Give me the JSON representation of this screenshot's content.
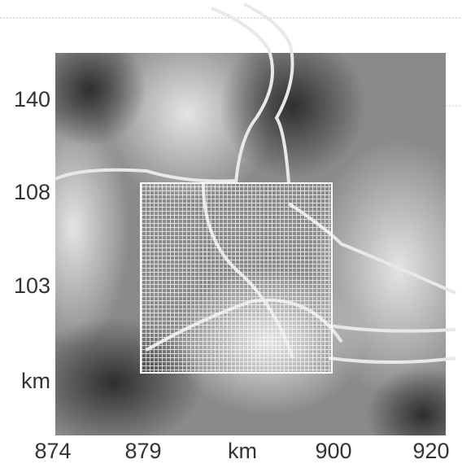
{
  "axes": {
    "y_labels": [
      "140",
      "108",
      "103",
      "km"
    ],
    "x_labels": [
      "874",
      "879",
      "km",
      "900",
      "920"
    ]
  }
}
